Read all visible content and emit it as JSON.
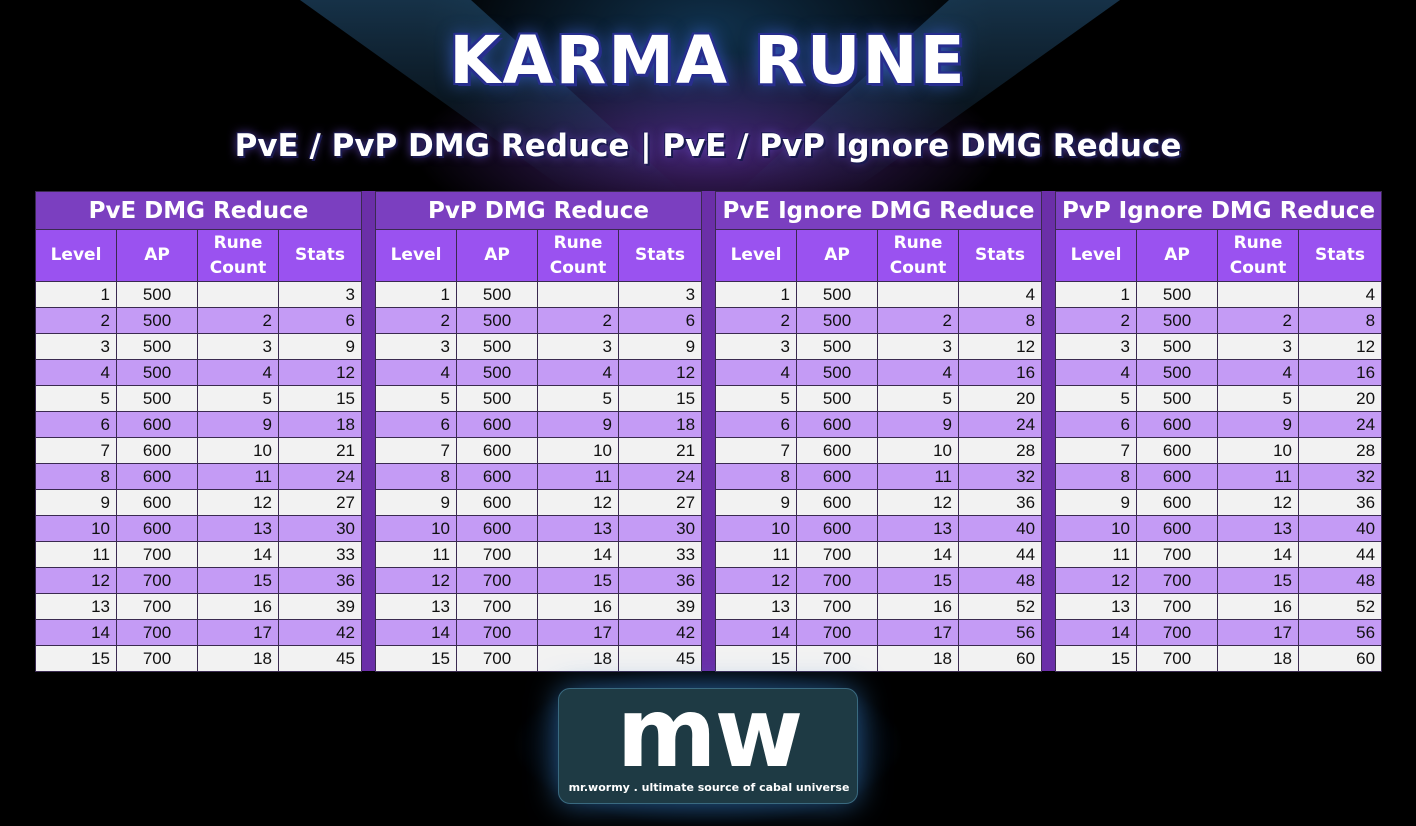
{
  "header": {
    "title": "KARMA RUNE",
    "subtitle": "PvE / PvP DMG Reduce | PvE / PvP Ignore DMG Reduce"
  },
  "columns": [
    "Level",
    "AP",
    "Rune Count",
    "Stats"
  ],
  "tables": [
    {
      "title": "PvE DMG Reduce",
      "rows": [
        [
          "1",
          "500",
          "",
          "3"
        ],
        [
          "2",
          "500",
          "2",
          "6"
        ],
        [
          "3",
          "500",
          "3",
          "9"
        ],
        [
          "4",
          "500",
          "4",
          "12"
        ],
        [
          "5",
          "500",
          "5",
          "15"
        ],
        [
          "6",
          "600",
          "9",
          "18"
        ],
        [
          "7",
          "600",
          "10",
          "21"
        ],
        [
          "8",
          "600",
          "11",
          "24"
        ],
        [
          "9",
          "600",
          "12",
          "27"
        ],
        [
          "10",
          "600",
          "13",
          "30"
        ],
        [
          "11",
          "700",
          "14",
          "33"
        ],
        [
          "12",
          "700",
          "15",
          "36"
        ],
        [
          "13",
          "700",
          "16",
          "39"
        ],
        [
          "14",
          "700",
          "17",
          "42"
        ],
        [
          "15",
          "700",
          "18",
          "45"
        ]
      ]
    },
    {
      "title": "PvP DMG Reduce",
      "rows": [
        [
          "1",
          "500",
          "",
          "3"
        ],
        [
          "2",
          "500",
          "2",
          "6"
        ],
        [
          "3",
          "500",
          "3",
          "9"
        ],
        [
          "4",
          "500",
          "4",
          "12"
        ],
        [
          "5",
          "500",
          "5",
          "15"
        ],
        [
          "6",
          "600",
          "9",
          "18"
        ],
        [
          "7",
          "600",
          "10",
          "21"
        ],
        [
          "8",
          "600",
          "11",
          "24"
        ],
        [
          "9",
          "600",
          "12",
          "27"
        ],
        [
          "10",
          "600",
          "13",
          "30"
        ],
        [
          "11",
          "700",
          "14",
          "33"
        ],
        [
          "12",
          "700",
          "15",
          "36"
        ],
        [
          "13",
          "700",
          "16",
          "39"
        ],
        [
          "14",
          "700",
          "17",
          "42"
        ],
        [
          "15",
          "700",
          "18",
          "45"
        ]
      ]
    },
    {
      "title": "PvE Ignore DMG Reduce",
      "rows": [
        [
          "1",
          "500",
          "",
          "4"
        ],
        [
          "2",
          "500",
          "2",
          "8"
        ],
        [
          "3",
          "500",
          "3",
          "12"
        ],
        [
          "4",
          "500",
          "4",
          "16"
        ],
        [
          "5",
          "500",
          "5",
          "20"
        ],
        [
          "6",
          "600",
          "9",
          "24"
        ],
        [
          "7",
          "600",
          "10",
          "28"
        ],
        [
          "8",
          "600",
          "11",
          "32"
        ],
        [
          "9",
          "600",
          "12",
          "36"
        ],
        [
          "10",
          "600",
          "13",
          "40"
        ],
        [
          "11",
          "700",
          "14",
          "44"
        ],
        [
          "12",
          "700",
          "15",
          "48"
        ],
        [
          "13",
          "700",
          "16",
          "52"
        ],
        [
          "14",
          "700",
          "17",
          "56"
        ],
        [
          "15",
          "700",
          "18",
          "60"
        ]
      ]
    },
    {
      "title": "PvP Ignore DMG Reduce",
      "rows": [
        [
          "1",
          "500",
          "",
          "4"
        ],
        [
          "2",
          "500",
          "2",
          "8"
        ],
        [
          "3",
          "500",
          "3",
          "12"
        ],
        [
          "4",
          "500",
          "4",
          "16"
        ],
        [
          "5",
          "500",
          "5",
          "20"
        ],
        [
          "6",
          "600",
          "9",
          "24"
        ],
        [
          "7",
          "600",
          "10",
          "28"
        ],
        [
          "8",
          "600",
          "11",
          "32"
        ],
        [
          "9",
          "600",
          "12",
          "36"
        ],
        [
          "10",
          "600",
          "13",
          "40"
        ],
        [
          "11",
          "700",
          "14",
          "44"
        ],
        [
          "12",
          "700",
          "15",
          "48"
        ],
        [
          "13",
          "700",
          "16",
          "52"
        ],
        [
          "14",
          "700",
          "17",
          "56"
        ],
        [
          "15",
          "700",
          "18",
          "60"
        ]
      ]
    }
  ],
  "logo": {
    "mark": "mw",
    "tagline": "mr.wormy . ultimate source of cabal universe"
  },
  "colors": {
    "group_header": "#7b3fc0",
    "column_header": "#9a52f0",
    "row_light": "#f2f2f2",
    "row_purple": "#c49bf5"
  }
}
